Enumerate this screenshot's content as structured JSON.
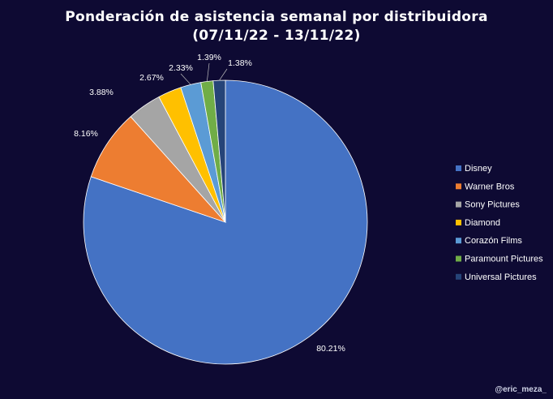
{
  "chart_data": {
    "type": "pie",
    "title_line1": "Ponderación de asistencia semanal por distribuidora",
    "title_line2": "(07/11/22 - 13/11/22)",
    "categories": [
      "Disney",
      "Warner Bros",
      "Sony Pictures",
      "Diamond",
      "Corazón Films",
      "Paramount Pictures",
      "Universal Pictures"
    ],
    "values": [
      80.21,
      8.16,
      3.88,
      2.67,
      2.33,
      1.39,
      1.38
    ],
    "value_labels": [
      "80.21%",
      "8.16%",
      "3.88%",
      "2.67%",
      "2.33%",
      "1.39%",
      "1.38%"
    ],
    "colors": [
      "#4472c4",
      "#ed7d31",
      "#a5a5a5",
      "#ffc000",
      "#5b9bd5",
      "#70ad47",
      "#264478"
    ],
    "legend_position": "right",
    "start_angle": "12 o'clock, clockwise from last slice",
    "background": "#0e0a33"
  },
  "watermark": "@eric_meza_"
}
